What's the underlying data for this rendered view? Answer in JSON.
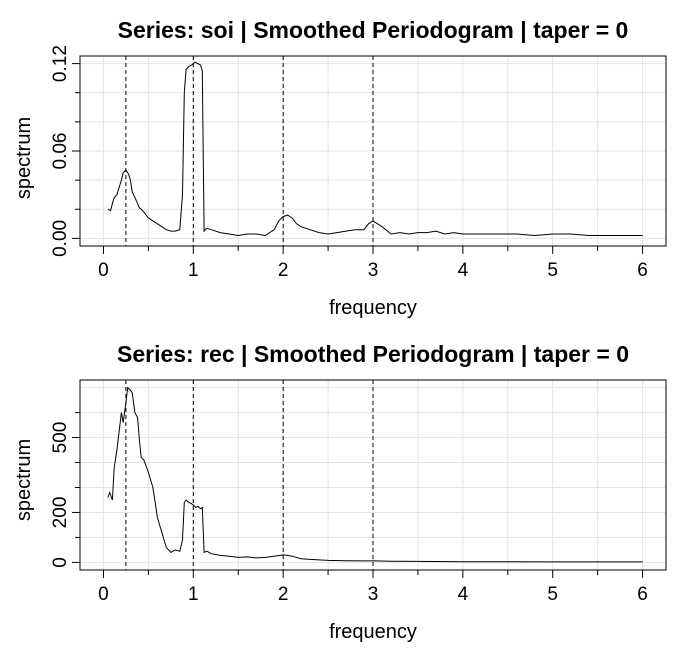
{
  "chart_data": [
    {
      "type": "line",
      "title": "Series: soi  |  Smoothed Periodogram  |  taper = 0",
      "xlabel": "frequency",
      "ylabel": "spectrum",
      "xlim": [
        0,
        6
      ],
      "ylim": [
        0,
        0.12
      ],
      "xticks": [
        "0",
        "1",
        "2",
        "3",
        "4",
        "5",
        "6"
      ],
      "yticks": [
        "0.00",
        "0.06",
        "0.12"
      ],
      "grid": true,
      "vlines": [
        0.25,
        1,
        2,
        3
      ],
      "series": [
        {
          "x": [
            0.05,
            0.08,
            0.1,
            0.12,
            0.15,
            0.18,
            0.2,
            0.22,
            0.25,
            0.28,
            0.3,
            0.32,
            0.35,
            0.38,
            0.4,
            0.42,
            0.45,
            0.5,
            0.55,
            0.6,
            0.65,
            0.7,
            0.75,
            0.8,
            0.85,
            0.88,
            0.9,
            0.92,
            0.95,
            0.98,
            1.0,
            1.02,
            1.05,
            1.08,
            1.1,
            1.12,
            1.15,
            1.2,
            1.3,
            1.4,
            1.5,
            1.6,
            1.7,
            1.8,
            1.9,
            1.95,
            2.0,
            2.05,
            2.1,
            2.15,
            2.2,
            2.3,
            2.4,
            2.5,
            2.6,
            2.7,
            2.8,
            2.9,
            2.95,
            3.0,
            3.05,
            3.1,
            3.2,
            3.3,
            3.4,
            3.5,
            3.6,
            3.7,
            3.8,
            3.9,
            4.0,
            4.2,
            4.4,
            4.6,
            4.8,
            5.0,
            5.2,
            5.4,
            5.6,
            5.8,
            6.0
          ],
          "y": [
            0.02,
            0.019,
            0.024,
            0.028,
            0.03,
            0.036,
            0.04,
            0.045,
            0.047,
            0.044,
            0.04,
            0.032,
            0.028,
            0.024,
            0.021,
            0.02,
            0.018,
            0.014,
            0.012,
            0.01,
            0.008,
            0.006,
            0.005,
            0.005,
            0.006,
            0.03,
            0.1,
            0.116,
            0.118,
            0.119,
            0.12,
            0.121,
            0.12,
            0.119,
            0.115,
            0.005,
            0.007,
            0.006,
            0.004,
            0.003,
            0.002,
            0.003,
            0.003,
            0.002,
            0.006,
            0.012,
            0.015,
            0.016,
            0.014,
            0.01,
            0.008,
            0.006,
            0.004,
            0.003,
            0.004,
            0.005,
            0.006,
            0.006,
            0.01,
            0.012,
            0.01,
            0.008,
            0.003,
            0.004,
            0.003,
            0.004,
            0.004,
            0.005,
            0.003,
            0.004,
            0.003,
            0.003,
            0.003,
            0.003,
            0.002,
            0.003,
            0.003,
            0.002,
            0.002,
            0.002,
            0.002
          ]
        }
      ]
    },
    {
      "type": "line",
      "title": "Series: rec  |  Smoothed Periodogram  |  taper = 0",
      "xlabel": "frequency",
      "ylabel": "spectrum",
      "xlim": [
        0,
        6
      ],
      "ylim": [
        0,
        700
      ],
      "xticks": [
        "0",
        "1",
        "2",
        "3",
        "4",
        "5",
        "6"
      ],
      "yticks": [
        "0",
        "200",
        "500"
      ],
      "grid": true,
      "vlines": [
        0.25,
        1,
        2,
        3
      ],
      "series": [
        {
          "x": [
            0.05,
            0.07,
            0.1,
            0.12,
            0.15,
            0.18,
            0.2,
            0.22,
            0.25,
            0.27,
            0.3,
            0.32,
            0.35,
            0.38,
            0.4,
            0.42,
            0.45,
            0.48,
            0.5,
            0.55,
            0.6,
            0.65,
            0.7,
            0.75,
            0.8,
            0.85,
            0.88,
            0.9,
            0.92,
            0.95,
            0.98,
            1.0,
            1.03,
            1.05,
            1.08,
            1.1,
            1.12,
            1.15,
            1.2,
            1.3,
            1.4,
            1.5,
            1.6,
            1.7,
            1.8,
            1.9,
            2.0,
            2.05,
            2.1,
            2.2,
            2.3,
            2.4,
            2.5,
            2.7,
            2.9,
            3.0,
            3.2,
            3.5,
            4.0,
            4.5,
            5.0,
            5.5,
            6.0
          ],
          "y": [
            260,
            280,
            250,
            380,
            450,
            540,
            600,
            560,
            640,
            700,
            690,
            680,
            600,
            580,
            490,
            420,
            410,
            380,
            360,
            300,
            180,
            120,
            60,
            40,
            50,
            45,
            90,
            240,
            250,
            240,
            235,
            230,
            220,
            225,
            215,
            220,
            40,
            45,
            35,
            28,
            25,
            20,
            22,
            18,
            20,
            25,
            30,
            28,
            25,
            15,
            12,
            10,
            8,
            7,
            6,
            6,
            5,
            4,
            3,
            3,
            2,
            2,
            2
          ]
        }
      ]
    }
  ]
}
